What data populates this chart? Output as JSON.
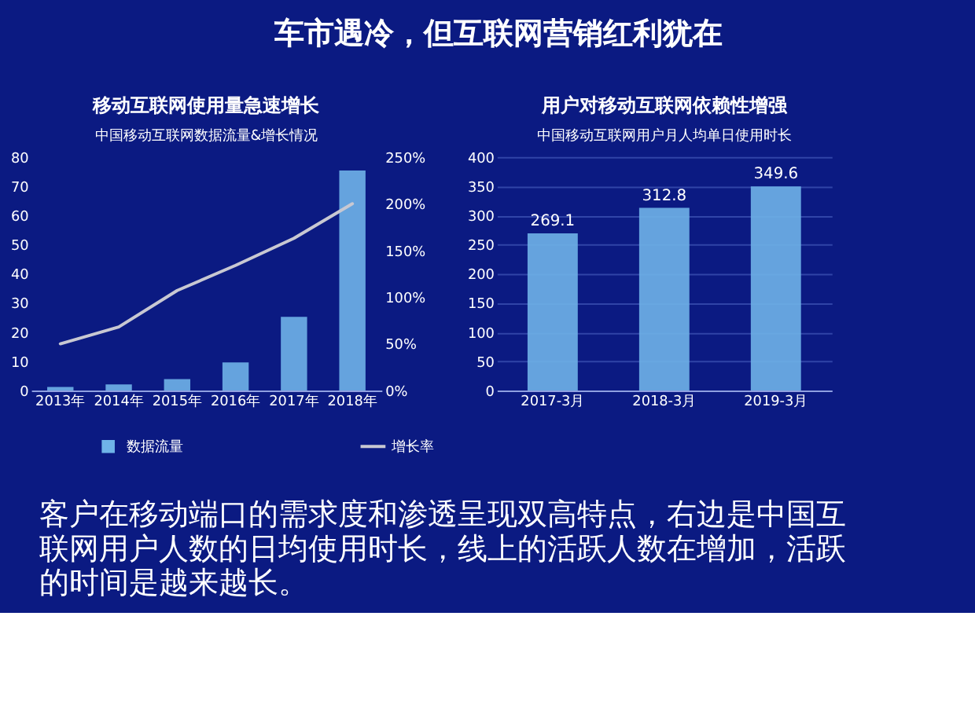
{
  "chart_data": [
    {
      "type": "bar",
      "title": "移动互联网使用量急速增长",
      "subtitle": "中国移动互联网数据流量&增长情况",
      "categories": [
        "2013年",
        "2014年",
        "2015年",
        "2016年",
        "2017年",
        "2018年"
      ],
      "series": [
        {
          "name": "数据流量",
          "color": "#6fb3e8",
          "values": [
            1.2,
            2.1,
            3.9,
            9.6,
            25.2,
            75.4
          ]
        },
        {
          "name": "增长率",
          "type": "line",
          "axis": "y2",
          "color": "#c8c8d2",
          "values": [
            50,
            68,
            107,
            134,
            163,
            200
          ]
        }
      ],
      "ylim": [
        0,
        80
      ],
      "yticks": [
        0,
        10,
        20,
        30,
        40,
        50,
        60,
        70,
        80
      ],
      "y2lim": [
        0,
        250
      ],
      "y2ticks": [
        {
          "value": 0,
          "label": "0%"
        },
        {
          "value": 50,
          "label": "50%"
        },
        {
          "value": 100,
          "label": "100%"
        },
        {
          "value": 150,
          "label": "150%"
        },
        {
          "value": 200,
          "label": "200%"
        },
        {
          "value": 250,
          "label": "250%"
        }
      ],
      "legend": "bottom",
      "annotations": [
        "车市遇冷，但互联网营销红利犹在",
        "客户在移动端口的需求度和渗透呈现双高特点，右边是中国互联网用户人数的日均使用时长，线上的活跃人数在增加，活跃的时间是越来越长。"
      ]
    },
    {
      "type": "bar",
      "title": "用户对移动互联网依赖性增强",
      "subtitle": "中国移动互联网用户月人均单日使用时长",
      "categories": [
        "2017-3月",
        "2018-3月",
        "2019-3月"
      ],
      "series": [
        {
          "color": "#6fb3e8",
          "values": [
            269.1,
            312.8,
            349.6
          ]
        }
      ],
      "ylim": [
        0,
        400
      ],
      "yticks": [
        0,
        50,
        100,
        150,
        200,
        250,
        300,
        350,
        400
      ],
      "grid": "y",
      "data_labels": true
    }
  ]
}
